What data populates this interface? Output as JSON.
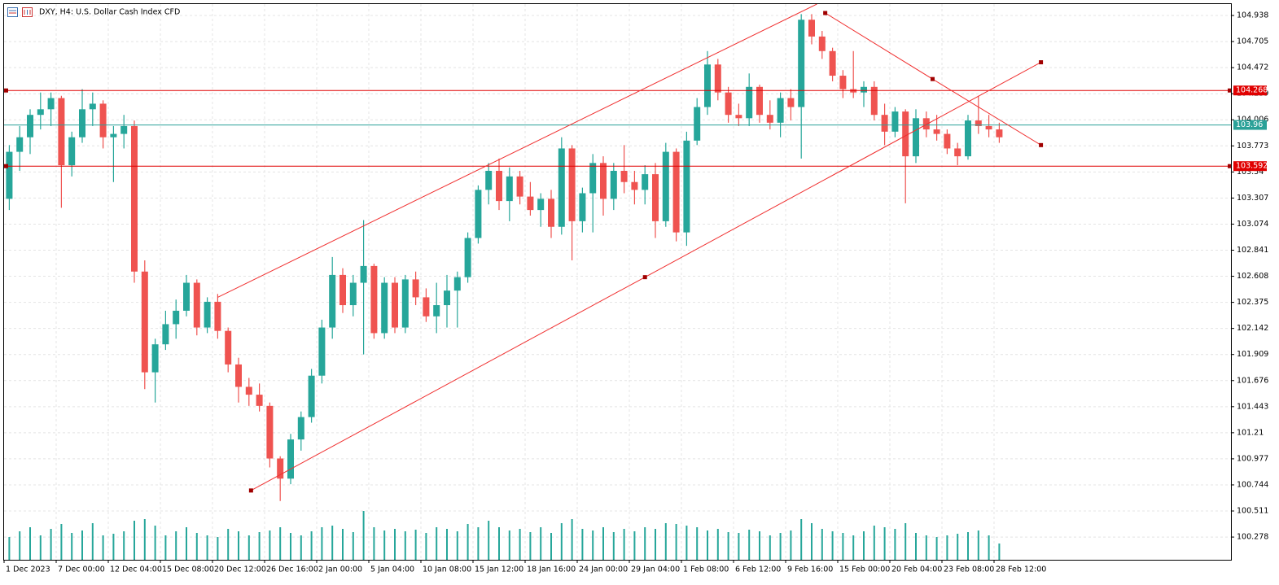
{
  "chart_data": {
    "type": "candlestick",
    "title": "DXY, H4:  U.S. Dollar Cash Index CFD",
    "categories": [
      "1 Dec 2023",
      null,
      null,
      null,
      null,
      "7 Dec 00:00",
      null,
      null,
      null,
      null,
      "12 Dec 04:00",
      null,
      null,
      null,
      null,
      "15 Dec 08:00",
      null,
      null,
      null,
      null,
      "20 Dec 12:00",
      null,
      null,
      null,
      null,
      "26 Dec 16:00",
      null,
      null,
      null,
      null,
      "2 Jan 00:00",
      null,
      null,
      null,
      null,
      "5 Jan 04:00",
      null,
      null,
      null,
      null,
      "10 Jan 08:00",
      null,
      null,
      null,
      null,
      "15 Jan 12:00",
      null,
      null,
      null,
      null,
      "18 Jan 16:00",
      null,
      null,
      null,
      null,
      "24 Jan 00:00",
      null,
      null,
      null,
      null,
      "29 Jan 04:00",
      null,
      null,
      null,
      null,
      "1 Feb 08:00",
      null,
      null,
      null,
      null,
      "6 Feb 12:00",
      null,
      null,
      null,
      null,
      "9 Feb 16:00",
      null,
      null,
      null,
      null,
      "15 Feb 00:00",
      null,
      null,
      null,
      null,
      "20 Feb 04:00",
      null,
      null,
      null,
      null,
      "23 Feb 08:00",
      null,
      null,
      null,
      null,
      "28 Feb 12:00"
    ],
    "open": [
      103.3,
      103.72,
      103.85,
      104.05,
      104.1,
      104.2,
      103.6,
      103.85,
      104.1,
      104.15,
      103.85,
      103.88,
      103.95,
      102.65,
      101.75,
      102.0,
      102.18,
      102.3,
      102.55,
      102.15,
      102.38,
      102.12,
      101.82,
      101.62,
      101.55,
      101.45,
      100.98,
      100.8,
      101.15,
      101.35,
      101.72,
      102.15,
      102.62,
      102.35,
      102.55,
      102.7,
      102.1,
      102.55,
      102.15,
      102.58,
      102.42,
      102.25,
      102.35,
      102.48,
      102.6,
      102.95,
      103.38,
      103.55,
      103.28,
      103.5,
      103.32,
      103.2,
      103.3,
      103.05,
      103.75,
      103.1,
      103.35,
      103.62,
      103.3,
      103.55,
      103.45,
      103.38,
      103.52,
      103.1,
      103.72,
      103.0,
      103.82,
      104.12,
      104.5,
      104.25,
      104.05,
      104.02,
      104.3,
      104.05,
      103.98,
      104.2,
      104.12,
      104.9,
      104.75,
      104.62,
      104.4,
      104.28,
      104.25,
      104.3,
      104.05,
      103.9,
      104.08,
      103.68,
      104.02,
      103.92,
      103.88,
      103.75,
      103.68,
      104.0,
      103.95,
      103.92
    ],
    "high": [
      103.78,
      103.95,
      104.1,
      104.25,
      104.25,
      104.22,
      103.9,
      104.28,
      104.25,
      104.18,
      103.95,
      104.05,
      104.0,
      102.75,
      102.05,
      102.3,
      102.4,
      102.62,
      102.58,
      102.42,
      102.45,
      102.15,
      101.88,
      101.7,
      101.65,
      101.48,
      101.0,
      101.2,
      101.4,
      101.78,
      102.22,
      102.78,
      102.68,
      102.62,
      103.11,
      102.72,
      102.6,
      102.6,
      102.62,
      102.65,
      102.5,
      102.55,
      102.62,
      102.65,
      103.0,
      103.42,
      103.62,
      103.66,
      103.58,
      103.55,
      103.45,
      103.35,
      103.38,
      103.85,
      103.78,
      103.4,
      103.7,
      103.68,
      103.62,
      103.78,
      103.55,
      103.6,
      103.62,
      103.8,
      103.75,
      103.9,
      104.2,
      104.62,
      104.55,
      104.3,
      104.15,
      104.42,
      104.32,
      104.18,
      104.25,
      104.28,
      104.95,
      104.95,
      104.8,
      104.65,
      104.45,
      104.62,
      104.35,
      104.35,
      104.15,
      104.12,
      104.1,
      104.1,
      104.08,
      104.05,
      103.92,
      103.8,
      104.05,
      104.22,
      104.05,
      103.98
    ],
    "low": [
      103.2,
      103.55,
      103.7,
      103.92,
      103.95,
      103.22,
      103.5,
      103.8,
      103.95,
      103.75,
      103.45,
      103.75,
      102.55,
      101.6,
      101.48,
      101.95,
      102.05,
      102.25,
      102.08,
      102.1,
      102.05,
      101.75,
      101.48,
      101.45,
      101.4,
      100.9,
      100.6,
      100.75,
      101.05,
      101.3,
      101.65,
      102.05,
      102.28,
      102.25,
      101.91,
      102.05,
      102.05,
      102.1,
      102.1,
      102.35,
      102.2,
      102.1,
      102.15,
      102.15,
      102.55,
      102.9,
      103.25,
      103.2,
      103.1,
      103.25,
      103.15,
      103.05,
      102.95,
      102.98,
      102.75,
      103.0,
      103.0,
      103.15,
      103.2,
      103.35,
      103.25,
      103.25,
      102.95,
      103.05,
      102.92,
      102.88,
      103.78,
      104.05,
      104.18,
      103.98,
      103.95,
      103.95,
      103.98,
      103.92,
      103.85,
      104.0,
      103.66,
      104.68,
      104.55,
      104.35,
      104.2,
      104.2,
      104.12,
      104.0,
      103.78,
      103.85,
      103.26,
      103.62,
      103.85,
      103.82,
      103.7,
      103.6,
      103.65,
      103.88,
      103.85,
      103.8
    ],
    "close": [
      103.72,
      103.85,
      104.05,
      104.1,
      104.2,
      103.6,
      103.85,
      104.1,
      104.15,
      103.85,
      103.88,
      103.95,
      102.65,
      101.75,
      102.0,
      102.18,
      102.3,
      102.55,
      102.15,
      102.38,
      102.12,
      101.82,
      101.62,
      101.55,
      101.45,
      100.98,
      100.8,
      101.15,
      101.35,
      101.72,
      102.15,
      102.62,
      102.35,
      102.55,
      102.7,
      102.1,
      102.55,
      102.15,
      102.58,
      102.42,
      102.25,
      102.35,
      102.48,
      102.6,
      102.95,
      103.38,
      103.55,
      103.28,
      103.5,
      103.32,
      103.2,
      103.3,
      103.05,
      103.75,
      103.1,
      103.35,
      103.62,
      103.3,
      103.55,
      103.45,
      103.38,
      103.52,
      103.1,
      103.72,
      103.0,
      103.82,
      104.12,
      104.5,
      104.25,
      104.05,
      104.02,
      104.3,
      104.05,
      103.98,
      104.2,
      104.12,
      104.9,
      104.75,
      104.62,
      104.4,
      104.28,
      104.25,
      104.3,
      104.05,
      103.9,
      104.08,
      103.68,
      104.02,
      103.92,
      103.88,
      103.75,
      103.68,
      104.0,
      103.95,
      103.92,
      103.85
    ],
    "volume": [
      28,
      35,
      40,
      30,
      38,
      44,
      33,
      36,
      45,
      30,
      32,
      35,
      48,
      50,
      42,
      30,
      35,
      40,
      33,
      30,
      28,
      38,
      35,
      30,
      34,
      36,
      40,
      33,
      30,
      35,
      40,
      42,
      38,
      34,
      60,
      40,
      36,
      38,
      35,
      37,
      33,
      40,
      38,
      35,
      44,
      40,
      48,
      40,
      36,
      38,
      34,
      40,
      33,
      45,
      50,
      38,
      36,
      40,
      34,
      38,
      35,
      40,
      38,
      45,
      44,
      42,
      40,
      36,
      38,
      34,
      33,
      37,
      35,
      30,
      33,
      36,
      50,
      45,
      38,
      35,
      33,
      30,
      35,
      42,
      40,
      38,
      45,
      33,
      30,
      28,
      30,
      32,
      34,
      36,
      30,
      20
    ],
    "ylim": [
      100.075,
      105.04
    ],
    "yticks": [
      100.278,
      100.511,
      100.744,
      100.977,
      101.21,
      101.443,
      101.676,
      101.909,
      102.142,
      102.375,
      102.608,
      102.841,
      103.074,
      103.307,
      103.54,
      103.773,
      104.006,
      104.239,
      104.472,
      104.705,
      104.938
    ],
    "grid": true,
    "up_color": "#26a69a",
    "down_color": "#ef5350",
    "volume_color": "#26a69a",
    "hlines": [
      {
        "value": 104.268,
        "color": "#e00000"
      },
      {
        "value": 103.96,
        "color": "#2aa198"
      },
      {
        "value": 103.592,
        "color": "#e00000"
      }
    ],
    "trendlines": [
      {
        "color": "#f03030",
        "x": [
          20.5,
          78
        ],
        "y": [
          102.42,
          105.04
        ],
        "anchors": false
      },
      {
        "color": "#f03030",
        "x": [
          23.7,
          61.5,
          99.5
        ],
        "y": [
          100.694,
          102.6,
          104.52
        ],
        "anchors": true
      },
      {
        "color": "#f03030",
        "x": [
          78.8,
          89.1,
          99.5
        ],
        "y": [
          104.96,
          104.37,
          103.78
        ],
        "anchors": true
      }
    ]
  }
}
